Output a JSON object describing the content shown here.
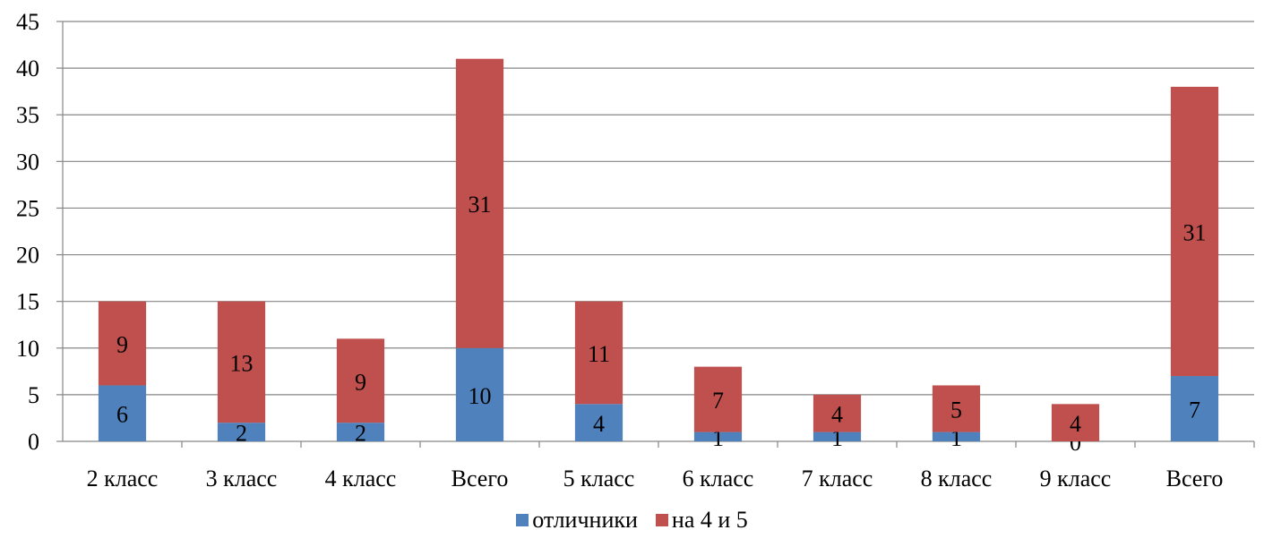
{
  "chart_data": {
    "type": "bar",
    "stacked": true,
    "categories": [
      "2 класс",
      "3 класс",
      "4 класс",
      "Всего",
      "5 класс",
      "6 класс",
      "7 класс",
      "8 класс",
      "9 класс",
      "Всего"
    ],
    "series": [
      {
        "name": "отличники",
        "color": "#4F81BD",
        "values": [
          6,
          2,
          2,
          10,
          4,
          1,
          1,
          1,
          0,
          7
        ]
      },
      {
        "name": "на 4 и 5",
        "color": "#C0504D",
        "values": [
          9,
          13,
          9,
          31,
          11,
          7,
          4,
          5,
          4,
          31
        ]
      }
    ],
    "ylim": [
      0,
      45
    ],
    "yticks": [
      "0",
      "5",
      "10",
      "15",
      "20",
      "25",
      "30",
      "35",
      "40",
      "45"
    ],
    "grid": true,
    "legend_position": "bottom",
    "data_labels": true
  }
}
